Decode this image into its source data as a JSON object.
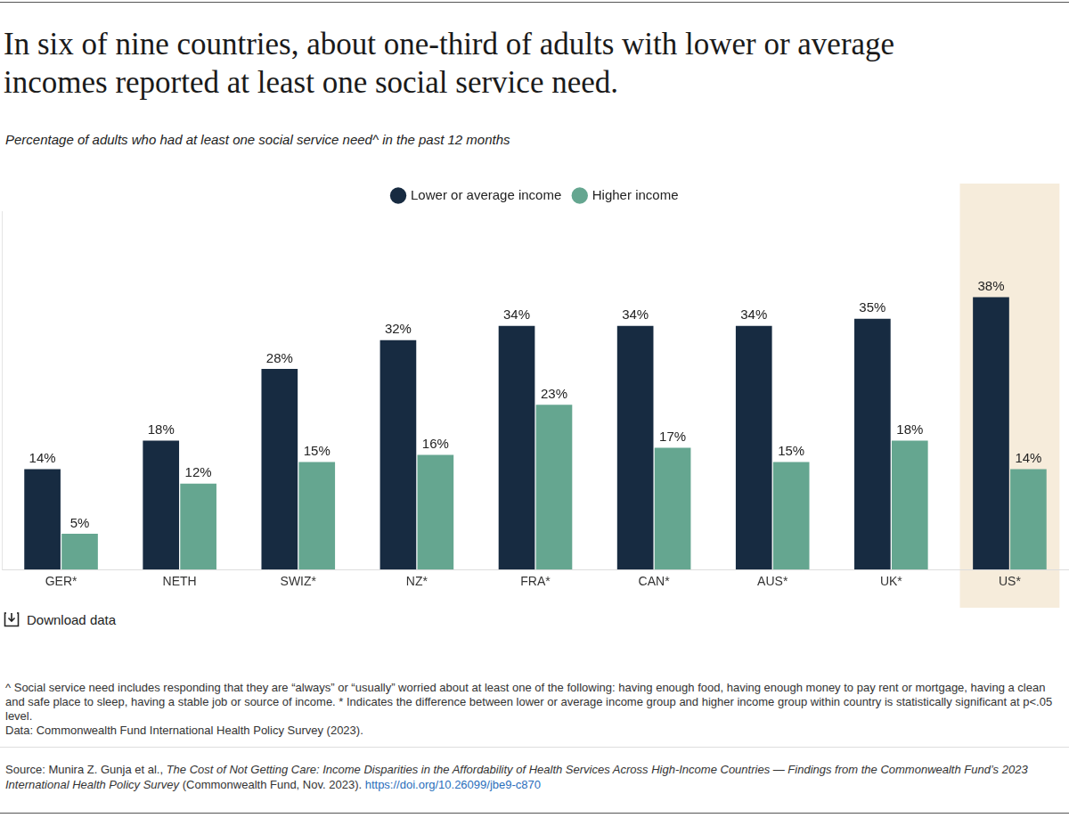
{
  "chart_data": {
    "type": "bar",
    "title": "In six of nine countries, about one-third of adults with lower or average incomes reported at least one social service need.",
    "subtitle": "Percentage of adults who had at least one social service need^ in the past 12 months",
    "categories": [
      "GER*",
      "NETH",
      "SWIZ*",
      "NZ*",
      "FRA*",
      "CAN*",
      "AUS*",
      "UK*",
      "US*"
    ],
    "series": [
      {
        "name": "Lower or average income",
        "color": "#172b41",
        "values": [
          14,
          18,
          28,
          32,
          34,
          34,
          34,
          35,
          38
        ],
        "value_labels": [
          "14%",
          "18%",
          "28%",
          "32%",
          "34%",
          "34%",
          "34%",
          "35%",
          "38%"
        ]
      },
      {
        "name": "Higher income",
        "color": "#65a690",
        "values": [
          5,
          12,
          15,
          16,
          23,
          17,
          15,
          18,
          14
        ],
        "value_labels": [
          "5%",
          "12%",
          "15%",
          "16%",
          "23%",
          "17%",
          "15%",
          "18%",
          "14%"
        ]
      }
    ],
    "ylim": [
      0,
      50
    ],
    "grid": false,
    "legend": "top",
    "data_labels": true,
    "tick_labels": "x",
    "download_label": "Download data",
    "notes": [
      "^ Social service need includes responding that they are “always” or “usually” worried about at least one of the following: having enough food, having enough money to pay rent or mortgage, having a clean and safe place to sleep, having a stable job or source of income. * Indicates the difference between lower or average income group and higher income group within country is statistically significant at p<.05 level.",
      "Data: Commonwealth Fund International Health Policy Survey (2023)."
    ],
    "source": {
      "prefix": "Source: Munira Z. Gunja et al., ",
      "title": "The Cost of Not Getting Care: Income Disparities in the Affordability of Health Services Across High-Income Countries — Findings from the Commonwealth Fund’s 2023 International Health Policy Survey",
      "suffix": " (Commonwealth Fund, Nov. 2023). ",
      "link": "https://doi.org/10.26099/jbe9-c870"
    }
  }
}
